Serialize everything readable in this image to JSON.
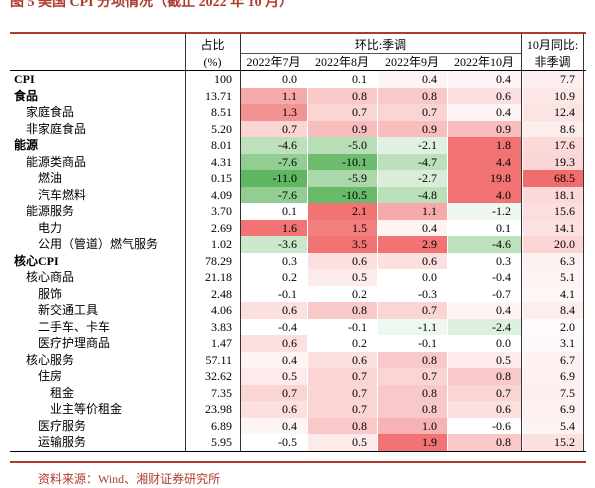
{
  "header": {
    "title": "图 5 美国 CPI 分项情况（截止 2022 年 10 月）"
  },
  "table": {
    "head1": [
      "占比",
      "环比:季调",
      "10月同比:"
    ],
    "head2": [
      "(%)",
      "2022年7月",
      "2022年8月",
      "2022年9月",
      "2022年10月",
      "非季调"
    ],
    "rows": [
      [
        "CPI",
        "100",
        "0.0",
        "0.1",
        "0.4",
        "0.4",
        "7.7"
      ],
      [
        "食品",
        "13.71",
        "1.1",
        "0.8",
        "0.8",
        "0.6",
        "10.9"
      ],
      [
        "家庭食品",
        "8.51",
        "1.3",
        "0.7",
        "0.7",
        "0.4",
        "12.4"
      ],
      [
        "非家庭食品",
        "5.20",
        "0.7",
        "0.9",
        "0.9",
        "0.9",
        "8.6"
      ],
      [
        "能源",
        "8.01",
        "-4.6",
        "-5.0",
        "-2.1",
        "1.8",
        "17.6"
      ],
      [
        "能源类商品",
        "4.31",
        "-7.6",
        "-10.1",
        "-4.7",
        "4.4",
        "19.3"
      ],
      [
        "燃油",
        "0.15",
        "-11.0",
        "-5.9",
        "-2.7",
        "19.8",
        "68.5"
      ],
      [
        "汽车燃料",
        "4.09",
        "-7.6",
        "-10.5",
        "-4.8",
        "4.0",
        "18.1"
      ],
      [
        "能源服务",
        "3.70",
        "0.1",
        "2.1",
        "1.1",
        "-1.2",
        "15.6"
      ],
      [
        "电力",
        "2.69",
        "1.6",
        "1.5",
        "0.4",
        "0.1",
        "14.1"
      ],
      [
        "公用（管道）燃气服务",
        "1.02",
        "-3.6",
        "3.5",
        "2.9",
        "-4.6",
        "20.0"
      ],
      [
        "核心CPI",
        "78.29",
        "0.3",
        "0.6",
        "0.6",
        "0.3",
        "6.3"
      ],
      [
        "核心商品",
        "21.18",
        "0.2",
        "0.5",
        "0.0",
        "-0.4",
        "5.1"
      ],
      [
        "服饰",
        "2.48",
        "-0.1",
        "0.2",
        "-0.3",
        "-0.7",
        "4.1"
      ],
      [
        "新交通工具",
        "4.06",
        "0.6",
        "0.8",
        "0.7",
        "0.4",
        "8.4"
      ],
      [
        "二手车、卡车",
        "3.83",
        "-0.4",
        "-0.1",
        "-1.1",
        "-2.4",
        "2.0"
      ],
      [
        "医疗护理商品",
        "1.47",
        "0.6",
        "0.2",
        "-0.1",
        "0.0",
        "3.1"
      ],
      [
        "核心服务",
        "57.11",
        "0.4",
        "0.6",
        "0.8",
        "0.5",
        "6.7"
      ],
      [
        "住房",
        "32.62",
        "0.5",
        "0.7",
        "0.7",
        "0.8",
        "6.9"
      ],
      [
        "租金",
        "7.35",
        "0.7",
        "0.7",
        "0.8",
        "0.7",
        "7.5"
      ],
      [
        "业主等价租金",
        "23.98",
        "0.6",
        "0.7",
        "0.8",
        "0.6",
        "6.9"
      ],
      [
        "医疗服务",
        "6.89",
        "0.4",
        "0.8",
        "1.0",
        "-0.6",
        "5.4"
      ],
      [
        "运输服务",
        "5.95",
        "-0.5",
        "0.5",
        "1.9",
        "0.8",
        "15.2"
      ]
    ]
  },
  "footer": {
    "source": "资料来源：Wind、湘财证券研究所"
  }
}
